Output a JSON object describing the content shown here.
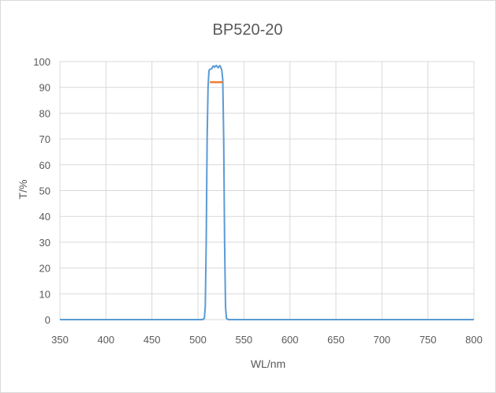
{
  "chart_data": {
    "type": "line",
    "title": "BP520-20",
    "xlabel": "WL/nm",
    "ylabel": "T/%",
    "xlim": [
      350,
      800
    ],
    "ylim": [
      0,
      100
    ],
    "x_ticks": [
      "350",
      "400",
      "450",
      "500",
      "550",
      "600",
      "650",
      "700",
      "750",
      "800"
    ],
    "y_ticks": [
      "0",
      "10",
      "20",
      "30",
      "40",
      "50",
      "60",
      "70",
      "80",
      "90",
      "100"
    ],
    "grid": true,
    "series": [
      {
        "color": "#5b9bd5",
        "points": [
          [
            350,
            0
          ],
          [
            505,
            0
          ],
          [
            507,
            0.5
          ],
          [
            508,
            5
          ],
          [
            509,
            30
          ],
          [
            510,
            70
          ],
          [
            511,
            90
          ],
          [
            512,
            96.5
          ],
          [
            513,
            97
          ],
          [
            515,
            97.2
          ],
          [
            516,
            98
          ],
          [
            517,
            98.3
          ],
          [
            518,
            97.8
          ],
          [
            519,
            98.2
          ],
          [
            520,
            98.5
          ],
          [
            521,
            98
          ],
          [
            522,
            97.6
          ],
          [
            523,
            98.2
          ],
          [
            524,
            98.4
          ],
          [
            525,
            97.6
          ],
          [
            526,
            96.5
          ],
          [
            527,
            93
          ],
          [
            528,
            70
          ],
          [
            529,
            30
          ],
          [
            530,
            5
          ],
          [
            531,
            0.5
          ],
          [
            533,
            0
          ],
          [
            800,
            0
          ]
        ]
      },
      {
        "color": "#ed7d31",
        "points": [
          [
            513,
            92.0
          ],
          [
            527,
            92.0
          ]
        ]
      }
    ]
  }
}
